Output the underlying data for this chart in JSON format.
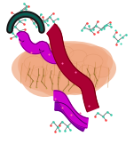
{
  "background_color": "#ffffff",
  "fig_width": 1.51,
  "fig_height": 1.89,
  "dpi": 100,
  "membrane_color": "#F0A882",
  "helix_purple": "#CC00CC",
  "helix_dark_red": "#AA0033",
  "helix_purple2": "#8800AA",
  "loop_dark": "#111111",
  "loop_teal": "#007766",
  "bond_color": "#888888",
  "carbon_color": "#33CCAA",
  "oxygen_color": "#FF4444",
  "lipid_color": "#CC8844"
}
